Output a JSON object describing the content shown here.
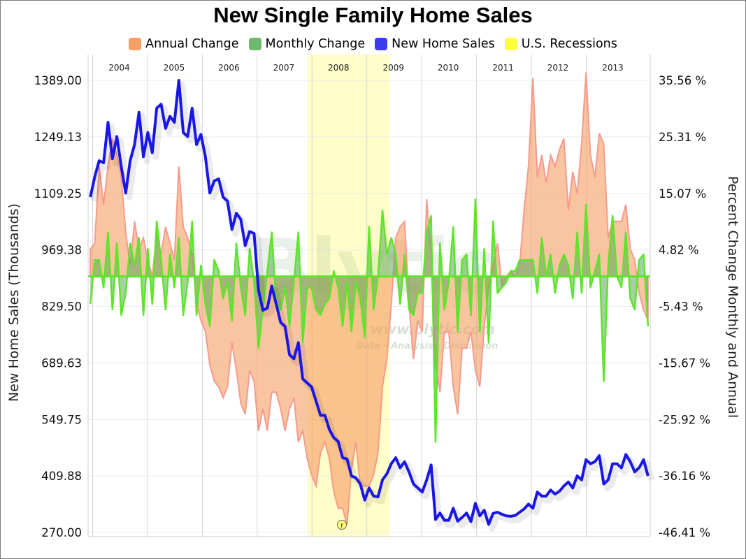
{
  "chart_data": {
    "type": "line",
    "title": "New Single Family Home Sales",
    "ylabel": "New Home Sales (Thousands)",
    "y2label": "Percent Change Monthly and Annual",
    "ylim": [
      270.0,
      1389.0
    ],
    "y2lim": [
      -46.41,
      35.56
    ],
    "y_ticks": [
      "1389.00",
      "1249.13",
      "1109.25",
      "969.38",
      "829.50",
      "689.63",
      "549.75",
      "409.88",
      "270.00"
    ],
    "y2_ticks": [
      "35.56 %",
      "25.31 %",
      "15.07 %",
      "4.82 %",
      "-5.43 %",
      "-15.67 %",
      "-25.92 %",
      "-36.16 %",
      "-46.41 %"
    ],
    "x_ticks": [
      "2004",
      "2005",
      "2006",
      "2007",
      "2008",
      "2009",
      "2010",
      "2011",
      "2012",
      "2013"
    ],
    "x_start": "2003-12",
    "x_end": "2014-03",
    "recessions": [
      {
        "start": "2007-12",
        "end": "2009-06"
      }
    ],
    "legend_position": "top-center",
    "grid": true,
    "colors": {
      "annual": "#f5a066",
      "annual_edge": "#f79a8e",
      "monthly": "#5fa85f",
      "monthly_line": "#5ee52a",
      "sales": "#1a17e6",
      "recession": "#fffdc8",
      "recession_legend": "#ffff40"
    },
    "series": [
      {
        "name": "New Home Sales",
        "values": [
          1100,
          1150,
          1190,
          1185,
          1285,
          1195,
          1250,
          1175,
          1110,
          1190,
          1230,
          1310,
          1200,
          1260,
          1210,
          1320,
          1330,
          1270,
          1300,
          1285,
          1389,
          1260,
          1250,
          1320,
          1230,
          1255,
          1200,
          1110,
          1140,
          1145,
          1100,
          1090,
          1020,
          1060,
          1045,
          980,
          1015,
          1010,
          870,
          820,
          825,
          880,
          835,
          790,
          780,
          710,
          700,
          740,
          650,
          640,
          630,
          595,
          560,
          560,
          525,
          505,
          495,
          455,
          452,
          410,
          405,
          390,
          350,
          380,
          360,
          358,
          400,
          415,
          440,
          455,
          430,
          445,
          420,
          390,
          380,
          370,
          400,
          437,
          302,
          318,
          300,
          300,
          330,
          298,
          307,
          318,
          297,
          342,
          311,
          325,
          290,
          317,
          320,
          315,
          311,
          310,
          312,
          320,
          328,
          340,
          330,
          370,
          360,
          360,
          375,
          365,
          372,
          385,
          395,
          380,
          410,
          400,
          450,
          440,
          445,
          460,
          390,
          400,
          440,
          440,
          430,
          463,
          445,
          420,
          430,
          450,
          410
        ]
      },
      {
        "name": "Monthly Change",
        "values": [
          -5,
          3,
          3,
          -2,
          8,
          -6,
          6,
          -7,
          -3,
          6,
          2,
          7,
          -7,
          5,
          -5,
          10,
          3,
          -6,
          4,
          -2,
          7,
          -7,
          -1,
          10,
          -7,
          2,
          -5,
          -9,
          3,
          1,
          -4,
          -1,
          -8,
          6,
          -2,
          -7,
          5,
          -1,
          -13,
          -6,
          1,
          8,
          -5,
          -6,
          -2,
          -9,
          -1,
          8,
          -12,
          -2,
          -2,
          -6,
          -7,
          -5,
          -4,
          1,
          -2,
          -9,
          -1,
          -10,
          -1,
          -4,
          -11,
          9,
          -6,
          0,
          12,
          4,
          7,
          4,
          -5,
          4,
          -6,
          -7,
          -3,
          -3,
          8,
          11,
          -30,
          6,
          -6,
          -1,
          9,
          -10,
          3,
          4,
          -7,
          14,
          -10,
          5,
          -12,
          10,
          -3,
          -2,
          -1,
          1,
          1,
          3,
          3,
          3,
          3,
          -3,
          7,
          0,
          4,
          -3,
          2,
          4,
          2,
          -4,
          8,
          -3,
          13,
          -2,
          1,
          4,
          -19,
          2,
          11,
          0,
          -2,
          8,
          -4,
          -6,
          3,
          4,
          -9
        ]
      },
      {
        "name": "Annual Change",
        "values": [
          5,
          6,
          20,
          13,
          20,
          25,
          22,
          18,
          8,
          2,
          10,
          5,
          7,
          3,
          0,
          8,
          4,
          9,
          6,
          3,
          20,
          9,
          7,
          4,
          -5,
          -8,
          -10,
          -16,
          -19,
          -20,
          -22,
          -20,
          -12,
          -17,
          -23,
          -25,
          -17,
          -19,
          -28,
          -24,
          -28,
          -21,
          -21,
          -24,
          -28,
          -24,
          -22,
          -30,
          -28,
          -33,
          -36,
          -38,
          -32,
          -30,
          -33,
          -39,
          -42,
          -42,
          -45,
          -35,
          -30,
          -38,
          -38,
          -38,
          -36,
          -32,
          -20,
          -15,
          -5,
          7,
          9,
          10,
          -5,
          -15,
          -8,
          -10,
          14,
          4,
          -16,
          -21,
          -10,
          -10,
          -20,
          -25,
          -13,
          -13,
          -10,
          -17,
          -20,
          -9,
          -2,
          2,
          6,
          -2,
          0,
          1,
          0,
          2,
          12,
          20,
          36,
          18,
          22,
          17,
          22,
          20,
          23,
          25,
          12,
          19,
          15,
          24,
          37,
          22,
          18,
          26,
          24,
          7,
          10,
          10,
          10,
          13,
          5,
          3,
          -3,
          -6,
          -8
        ]
      }
    ]
  },
  "legend": {
    "items": [
      {
        "label": "Annual Change",
        "color": "#f5a066"
      },
      {
        "label": "Monthly Change",
        "color": "#6cb86c"
      },
      {
        "label": "New Home Sales",
        "color": "#3a3af0"
      },
      {
        "label": "U.S. Recessions",
        "color": "#ffff40"
      }
    ]
  },
  "watermark": {
    "logo": "Blytic",
    "url": "www.blytic.com",
    "tagline": "Data - Analysis - Discussion"
  },
  "recession_marker": {
    "label": "r"
  }
}
